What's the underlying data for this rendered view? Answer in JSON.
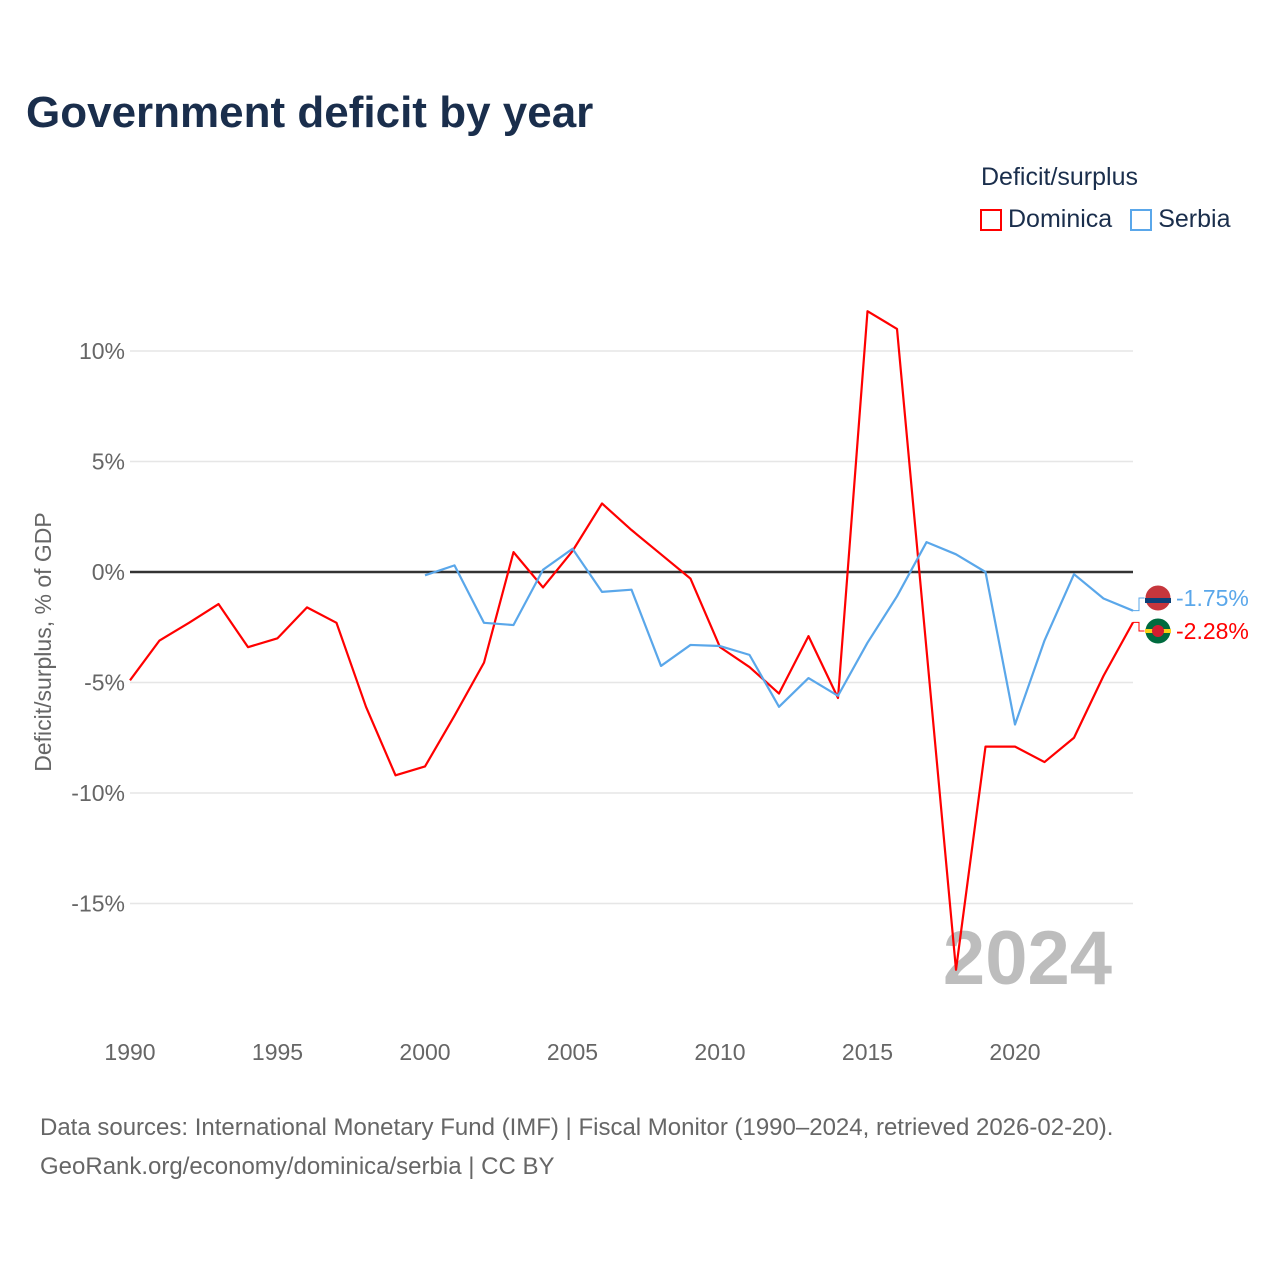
{
  "title": "Government deficit by year",
  "legend": {
    "title": "Deficit/surplus",
    "items": [
      {
        "name": "Dominica",
        "color": "#ff0000"
      },
      {
        "name": "Serbia",
        "color": "#5aa7ea"
      }
    ]
  },
  "watermark_year": "2024",
  "source": {
    "line1": "Data sources: International Monetary Fund (IMF) | Fiscal Monitor (1990–2024, retrieved 2026-02-20).",
    "line2": "GeoRank.org/economy/dominica/serbia | CC BY"
  },
  "chart_data": {
    "type": "line",
    "title": "Government deficit by year",
    "xlabel": "",
    "ylabel": "Deficit/surplus, % of GDP",
    "xlim": [
      1990,
      2024
    ],
    "ylim": [
      -20,
      13
    ],
    "x_ticks": [
      1990,
      1995,
      2000,
      2005,
      2010,
      2015,
      2020
    ],
    "x_tick_labels": [
      "1990",
      "1995",
      "2000",
      "2005",
      "2010",
      "2015",
      "2020"
    ],
    "y_ticks": [
      10,
      5,
      0,
      -5,
      -10,
      -15
    ],
    "y_tick_labels": [
      "10%",
      "5%",
      "0%",
      "-5%",
      "-10%",
      "-15%"
    ],
    "grid": true,
    "legend_position": "top-right",
    "series": [
      {
        "name": "Dominica",
        "color": "#ff0000",
        "end_label": "-2.28%",
        "start_year": 1990,
        "values": [
          -4.9,
          -3.1,
          -2.3,
          -1.45,
          -3.4,
          -3.0,
          -1.6,
          -2.3,
          -6.1,
          -9.2,
          -8.8,
          -6.5,
          -4.1,
          0.9,
          -0.7,
          0.95,
          3.1,
          1.9,
          0.8,
          -0.3,
          -3.4,
          -4.3,
          -5.5,
          -2.9,
          -5.7,
          11.8,
          11.0,
          -3.5,
          -18.0,
          -7.9,
          -7.9,
          -8.6,
          -7.5,
          -4.7,
          -2.28
        ]
      },
      {
        "name": "Serbia",
        "color": "#5aa7ea",
        "end_label": "-1.75%",
        "start_year": 2000,
        "values": [
          -0.15,
          0.3,
          -2.3,
          -2.4,
          0.1,
          1.05,
          -0.9,
          -0.8,
          -4.25,
          -3.3,
          -3.35,
          -3.75,
          -6.1,
          -4.8,
          -5.6,
          -3.2,
          -1.1,
          1.35,
          0.8,
          0.0,
          -6.9,
          -3.1,
          -0.1,
          -1.2,
          -1.75
        ]
      }
    ]
  }
}
